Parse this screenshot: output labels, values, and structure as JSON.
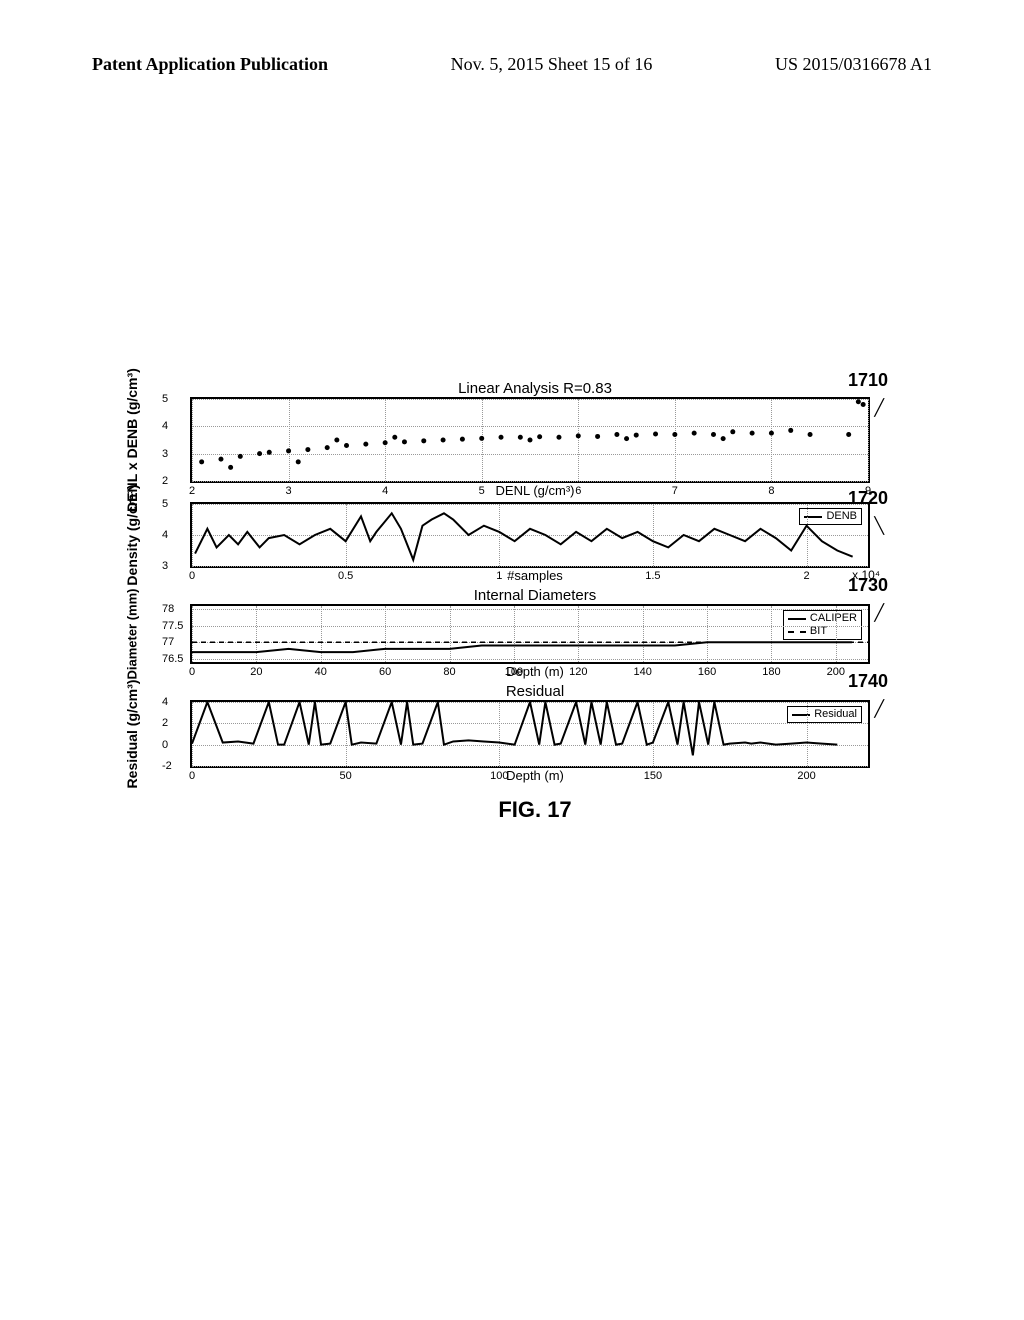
{
  "header": {
    "left": "Patent Application Publication",
    "center": "Nov. 5, 2015  Sheet 15 of 16",
    "right": "US 2015/0316678 A1"
  },
  "figure_caption": "FIG. 17",
  "tags": {
    "p1": "1710",
    "p2": "1720",
    "p3": "1730",
    "p4": "1740"
  },
  "plot1": {
    "type": "scatter",
    "title": "Linear Analysis R=0.83",
    "ylabel": "DENL x DENB (g/cm³)",
    "xlabel": "DENL (g/cm³)",
    "xlim": [
      2,
      9
    ],
    "ylim": [
      2,
      5
    ],
    "yticks": [
      2,
      3,
      4,
      5
    ],
    "xticks": [
      2,
      3,
      4,
      5,
      6,
      7,
      8,
      9
    ],
    "points": [
      [
        2.1,
        2.7
      ],
      [
        2.3,
        2.8
      ],
      [
        2.5,
        2.9
      ],
      [
        2.7,
        3.0
      ],
      [
        2.8,
        3.05
      ],
      [
        3.0,
        3.1
      ],
      [
        3.2,
        3.15
      ],
      [
        3.4,
        3.22
      ],
      [
        3.6,
        3.3
      ],
      [
        3.8,
        3.35
      ],
      [
        4.0,
        3.4
      ],
      [
        4.2,
        3.43
      ],
      [
        4.4,
        3.47
      ],
      [
        4.6,
        3.5
      ],
      [
        4.8,
        3.53
      ],
      [
        5.0,
        3.56
      ],
      [
        5.2,
        3.6
      ],
      [
        5.4,
        3.6
      ],
      [
        5.6,
        3.62
      ],
      [
        5.8,
        3.6
      ],
      [
        6.0,
        3.65
      ],
      [
        6.2,
        3.63
      ],
      [
        6.4,
        3.7
      ],
      [
        6.6,
        3.68
      ],
      [
        6.8,
        3.72
      ],
      [
        7.0,
        3.7
      ],
      [
        7.2,
        3.75
      ],
      [
        7.4,
        3.7
      ],
      [
        7.6,
        3.8
      ],
      [
        7.8,
        3.75
      ],
      [
        8.0,
        3.75
      ],
      [
        8.2,
        3.85
      ],
      [
        8.4,
        3.7
      ],
      [
        8.8,
        3.7
      ],
      [
        8.9,
        4.9
      ],
      [
        8.95,
        4.8
      ],
      [
        2.4,
        2.5
      ],
      [
        3.1,
        2.7
      ],
      [
        3.5,
        3.5
      ],
      [
        4.1,
        3.6
      ],
      [
        5.5,
        3.5
      ],
      [
        6.5,
        3.55
      ],
      [
        7.5,
        3.55
      ]
    ],
    "point_color": "#000000",
    "grid_color": "#999999"
  },
  "plot2": {
    "type": "line",
    "ylabel": "Density (g/cm³)",
    "xlabel": "#samples",
    "legend": [
      "DENB"
    ],
    "xlim": [
      0,
      2.2
    ],
    "ylim": [
      3,
      5
    ],
    "yticks": [
      3,
      4,
      5
    ],
    "xticks": [
      0,
      0.5,
      1,
      1.5,
      2
    ],
    "x_exp_label": "x 10⁴",
    "series": [
      [
        0.01,
        3.4
      ],
      [
        0.05,
        4.2
      ],
      [
        0.08,
        3.6
      ],
      [
        0.12,
        4.0
      ],
      [
        0.15,
        3.7
      ],
      [
        0.18,
        4.1
      ],
      [
        0.22,
        3.6
      ],
      [
        0.25,
        3.9
      ],
      [
        0.3,
        4.0
      ],
      [
        0.35,
        3.7
      ],
      [
        0.4,
        4.0
      ],
      [
        0.45,
        4.2
      ],
      [
        0.5,
        3.8
      ],
      [
        0.55,
        4.6
      ],
      [
        0.58,
        3.8
      ],
      [
        0.6,
        4.1
      ],
      [
        0.65,
        4.7
      ],
      [
        0.68,
        4.2
      ],
      [
        0.72,
        3.2
      ],
      [
        0.75,
        4.3
      ],
      [
        0.78,
        4.5
      ],
      [
        0.82,
        4.7
      ],
      [
        0.85,
        4.5
      ],
      [
        0.9,
        4.0
      ],
      [
        0.95,
        4.3
      ],
      [
        1.0,
        4.1
      ],
      [
        1.05,
        3.8
      ],
      [
        1.1,
        4.2
      ],
      [
        1.15,
        4.0
      ],
      [
        1.2,
        3.7
      ],
      [
        1.25,
        4.1
      ],
      [
        1.3,
        3.8
      ],
      [
        1.35,
        4.2
      ],
      [
        1.4,
        3.9
      ],
      [
        1.45,
        4.1
      ],
      [
        1.5,
        3.8
      ],
      [
        1.55,
        3.6
      ],
      [
        1.6,
        4.0
      ],
      [
        1.65,
        3.8
      ],
      [
        1.7,
        4.2
      ],
      [
        1.75,
        4.0
      ],
      [
        1.8,
        3.8
      ],
      [
        1.85,
        4.2
      ],
      [
        1.9,
        3.9
      ],
      [
        1.95,
        3.5
      ],
      [
        2.0,
        4.3
      ],
      [
        2.05,
        3.8
      ],
      [
        2.1,
        3.5
      ],
      [
        2.15,
        3.3
      ]
    ],
    "line_color": "#000000"
  },
  "plot3": {
    "type": "line",
    "title": "Internal Diameters",
    "ylabel": "Diameter (mm)",
    "xlabel": "Depth (m)",
    "legend": [
      "CALIPER",
      "BIT"
    ],
    "xlim": [
      0,
      210
    ],
    "ylim": [
      76.4,
      78.1
    ],
    "yticks": [
      76.5,
      77,
      77.5,
      78
    ],
    "xticks": [
      0,
      20,
      40,
      60,
      80,
      100,
      120,
      140,
      160,
      180,
      200
    ],
    "caliper": [
      [
        0,
        76.7
      ],
      [
        10,
        76.7
      ],
      [
        20,
        76.7
      ],
      [
        30,
        76.8
      ],
      [
        40,
        76.7
      ],
      [
        50,
        76.7
      ],
      [
        60,
        76.8
      ],
      [
        70,
        76.8
      ],
      [
        80,
        76.8
      ],
      [
        90,
        76.9
      ],
      [
        100,
        76.9
      ],
      [
        110,
        76.9
      ],
      [
        120,
        76.9
      ],
      [
        130,
        76.9
      ],
      [
        140,
        76.9
      ],
      [
        150,
        76.9
      ],
      [
        160,
        77.0
      ],
      [
        170,
        77.0
      ],
      [
        180,
        77.0
      ],
      [
        190,
        77.0
      ],
      [
        200,
        77.0
      ],
      [
        205,
        77.0
      ]
    ],
    "bit": 77.0,
    "line_color": "#000000"
  },
  "plot4": {
    "type": "line",
    "title": "Residual",
    "ylabel": "Residual (g/cm³)",
    "xlabel": "Depth (m)",
    "legend": [
      "Residual"
    ],
    "xlim": [
      0,
      220
    ],
    "ylim": [
      -2,
      4
    ],
    "yticks": [
      -2,
      0,
      2,
      4
    ],
    "xticks": [
      0,
      50,
      100,
      150,
      200
    ],
    "series": [
      [
        0,
        0.1
      ],
      [
        5,
        4
      ],
      [
        10,
        0.2
      ],
      [
        15,
        0.3
      ],
      [
        20,
        0.1
      ],
      [
        25,
        4
      ],
      [
        28,
        0
      ],
      [
        30,
        0
      ],
      [
        35,
        4
      ],
      [
        38,
        0
      ],
      [
        40,
        4
      ],
      [
        42,
        0
      ],
      [
        45,
        0.1
      ],
      [
        50,
        4
      ],
      [
        52,
        0
      ],
      [
        55,
        0.2
      ],
      [
        60,
        0.1
      ],
      [
        65,
        4
      ],
      [
        68,
        0
      ],
      [
        70,
        4
      ],
      [
        72,
        0
      ],
      [
        75,
        0.1
      ],
      [
        80,
        4
      ],
      [
        82,
        0
      ],
      [
        85,
        0.3
      ],
      [
        90,
        0.4
      ],
      [
        95,
        0.3
      ],
      [
        100,
        0.2
      ],
      [
        105,
        0
      ],
      [
        110,
        4
      ],
      [
        113,
        0
      ],
      [
        115,
        4
      ],
      [
        118,
        0
      ],
      [
        120,
        0.1
      ],
      [
        125,
        4
      ],
      [
        128,
        0
      ],
      [
        130,
        4
      ],
      [
        133,
        0
      ],
      [
        135,
        4
      ],
      [
        138,
        0
      ],
      [
        140,
        0.1
      ],
      [
        145,
        4
      ],
      [
        148,
        0
      ],
      [
        150,
        0.2
      ],
      [
        155,
        4
      ],
      [
        158,
        0
      ],
      [
        160,
        4
      ],
      [
        163,
        -1
      ],
      [
        165,
        4
      ],
      [
        168,
        0
      ],
      [
        170,
        4
      ],
      [
        173,
        0
      ],
      [
        175,
        0.1
      ],
      [
        180,
        0.2
      ],
      [
        182,
        0.1
      ],
      [
        185,
        0.2
      ],
      [
        190,
        0
      ],
      [
        195,
        0.1
      ],
      [
        200,
        0.2
      ],
      [
        205,
        0.1
      ],
      [
        210,
        0
      ]
    ],
    "line_color": "#000000"
  }
}
